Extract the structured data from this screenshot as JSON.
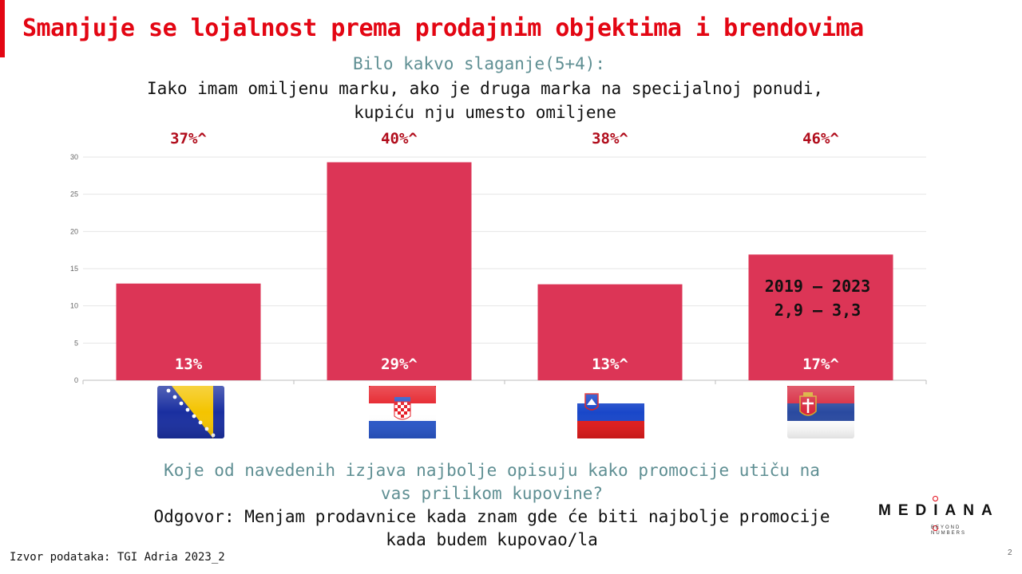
{
  "header": {
    "title": "Smanjuje se lojalnost prema prodajnim objektima i brendovima",
    "subtitle_line1": "Bilo kakvo slaganje(5+4):",
    "subtitle_line2": "Iako imam omiljenu marku, ako je druga marka na specijalnoj ponudi,",
    "subtitle_line3": "kupiću nju umesto omiljene"
  },
  "colors": {
    "accent": "#e30613",
    "bar": "#dc3556",
    "top_label": "#b10d1c",
    "teal_text": "#5f8f93"
  },
  "chart_data": {
    "type": "bar",
    "categories": [
      "Bosnia and Herzegovina",
      "Croatia",
      "Slovenia",
      "Serbia"
    ],
    "category_icons": [
      "flag-bosnia-icon",
      "flag-croatia-icon",
      "flag-slovenia-icon",
      "flag-serbia-icon"
    ],
    "values": [
      13,
      29.3,
      12.9,
      16.9
    ],
    "bar_labels": [
      "13%",
      "29%^",
      "13%^",
      "17%^"
    ],
    "top_labels": [
      "37%^",
      "40%^",
      "38%^",
      "46%^"
    ],
    "ylim": [
      0,
      30
    ],
    "yticks": [
      0,
      5,
      10,
      15,
      20,
      25,
      30
    ],
    "grid": true,
    "annotation": {
      "line1": "2019 – 2023",
      "line2": "2,9 – 3,3",
      "category": "Serbia"
    }
  },
  "question": {
    "line1": "Koje od navedenih izjava najbolje opisuju kako promocije utiču na",
    "line2": "vas prilikom kupovine?",
    "answer_line1": "Odgovor: Menjam prodavnice kada znam gde će biti najbolje promocije",
    "answer_line2": "kada budem kupovao/la"
  },
  "footer": {
    "source": "Izvor podataka: TGI Adria 2023_2",
    "page_number": "2"
  },
  "logo": {
    "wordmark": "MEDIANA",
    "tagline_line1": "BEYOND",
    "tagline_line2": "NUMBERS"
  }
}
